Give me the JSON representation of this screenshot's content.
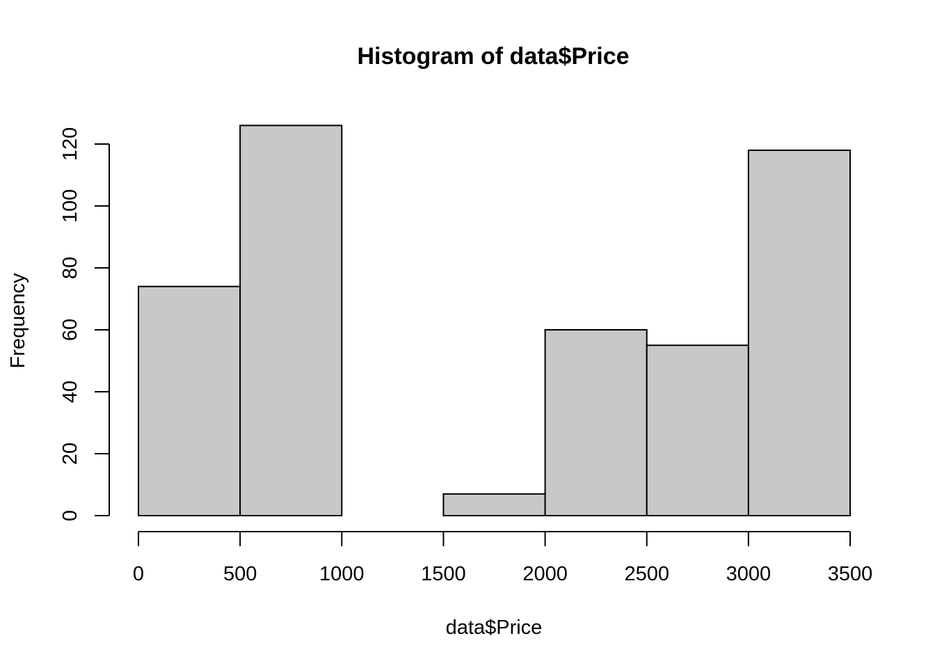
{
  "chart_data": {
    "type": "bar",
    "title": "Histogram of data$Price",
    "xlabel": "data$Price",
    "ylabel": "Frequency",
    "bin_edges": [
      0,
      500,
      1000,
      1500,
      2000,
      2500,
      3000,
      3500
    ],
    "values": [
      74,
      126,
      0,
      7,
      60,
      55,
      118
    ],
    "xlim": [
      0,
      3500
    ],
    "ylim": [
      0,
      120
    ],
    "x_ticks": [
      0,
      500,
      1000,
      1500,
      2000,
      2500,
      3000,
      3500
    ],
    "y_ticks": [
      0,
      20,
      40,
      60,
      80,
      100,
      120
    ],
    "grid": false,
    "bar_color": "#c8c8c8",
    "edge_color": "#000000"
  }
}
